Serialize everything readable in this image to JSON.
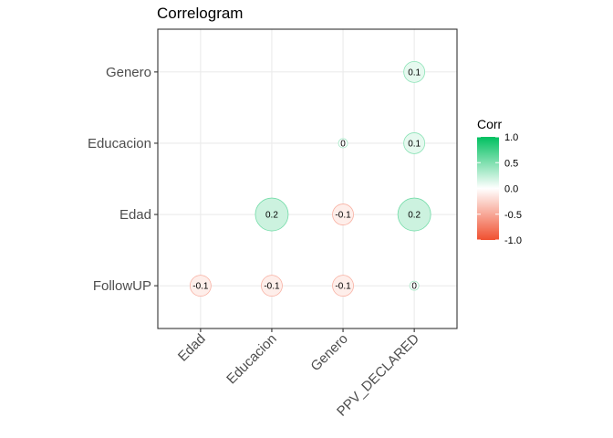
{
  "chart_data": {
    "type": "correlogram",
    "title": "Correlogram",
    "x_categories": [
      "Edad",
      "Educacion",
      "Genero",
      "PPV_DECLARED"
    ],
    "y_categories": [
      "FollowUP",
      "Edad",
      "Educacion",
      "Genero"
    ],
    "cells": [
      {
        "x": "PPV_DECLARED",
        "y": "Genero",
        "value": 0.1,
        "label": "0.1"
      },
      {
        "x": "Genero",
        "y": "Educacion",
        "value": 0.0,
        "label": "0"
      },
      {
        "x": "PPV_DECLARED",
        "y": "Educacion",
        "value": 0.1,
        "label": "0.1"
      },
      {
        "x": "Educacion",
        "y": "Edad",
        "value": 0.2,
        "label": "0.2"
      },
      {
        "x": "Genero",
        "y": "Edad",
        "value": -0.1,
        "label": "-0.1"
      },
      {
        "x": "PPV_DECLARED",
        "y": "Edad",
        "value": 0.2,
        "label": "0.2"
      },
      {
        "x": "Edad",
        "y": "FollowUP",
        "value": -0.1,
        "label": "-0.1"
      },
      {
        "x": "Educacion",
        "y": "FollowUP",
        "value": -0.1,
        "label": "-0.1"
      },
      {
        "x": "Genero",
        "y": "FollowUP",
        "value": -0.1,
        "label": "-0.1"
      },
      {
        "x": "PPV_DECLARED",
        "y": "FollowUP",
        "value": 0.0,
        "label": "0"
      }
    ],
    "legend": {
      "title": "Corr",
      "ticks": [
        "1.0",
        "0.5",
        "0.0",
        "-0.5",
        "-1.0"
      ],
      "tick_values": [
        1.0,
        0.5,
        0.0,
        -0.5,
        -1.0
      ],
      "range": [
        -1,
        1
      ],
      "colors": {
        "high": "#00c060",
        "mid": "#ffffff",
        "low": "#f05030"
      },
      "placement": "right"
    },
    "grid": true
  }
}
